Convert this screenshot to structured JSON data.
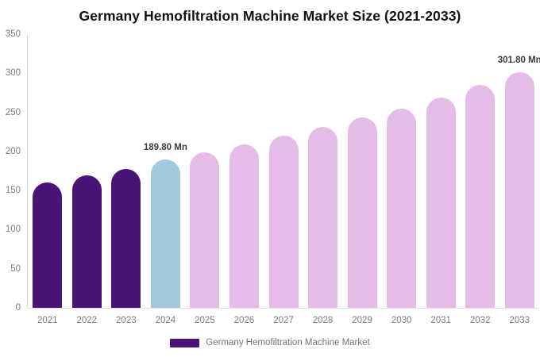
{
  "chart_data": {
    "type": "bar",
    "title": "Germany Hemofiltration Machine Market Size (2021-2033)",
    "categories": [
      "2021",
      "2022",
      "2023",
      "2024",
      "2025",
      "2026",
      "2027",
      "2028",
      "2029",
      "2030",
      "2031",
      "2032",
      "2033"
    ],
    "series": [
      {
        "name": "Germany Hemofiltration Machine Market",
        "values": [
          160,
          169,
          178,
          189.8,
          199,
          209,
          220,
          231,
          243,
          255,
          269,
          285,
          301.8
        ]
      }
    ],
    "unit": "Mn",
    "xlabel": "",
    "ylabel": "",
    "ylim": [
      0,
      350
    ],
    "yticks": [
      0,
      50,
      100,
      150,
      200,
      250,
      300,
      350
    ],
    "grid": false,
    "legend_position": "bottom",
    "bar_colors": [
      "#4b1277",
      "#4b1277",
      "#4b1277",
      "#a1c9de",
      "#e5bce7",
      "#e5bce7",
      "#e5bce7",
      "#e5bce7",
      "#e5bce7",
      "#e5bce7",
      "#e5bce7",
      "#e5bce7",
      "#e5bce7"
    ],
    "data_labels": [
      {
        "category": "2024",
        "text": "189.80 Mn"
      },
      {
        "category": "2033",
        "text": "301.80 Mn"
      }
    ],
    "legend_swatch_color": "#4b1277",
    "colors": {
      "series_purple": "#4b1277",
      "highlight_blue": "#a1c9de",
      "forecast_pink": "#e5bce7",
      "axis_line": "#dedede",
      "axis_text": "#7c7c7c",
      "data_label_text": "#373d3f",
      "legend_text": "#757575",
      "title_text": "#111111"
    }
  }
}
